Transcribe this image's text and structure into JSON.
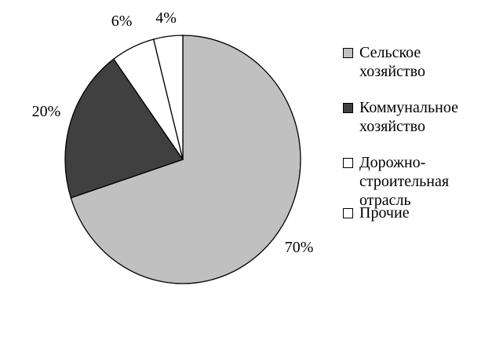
{
  "chart_data": {
    "type": "pie",
    "categories": [
      "Сельское хозяйство",
      "Коммунальное хозяйство",
      "Дорожно-строительная отрасль",
      "Прочие"
    ],
    "values": [
      70,
      20,
      6,
      4
    ],
    "value_labels": [
      "70%",
      "20%",
      "6%",
      "4%"
    ],
    "colors": [
      "#c0c0c0",
      "#404040",
      "#ffffff",
      "#ffffff"
    ],
    "legend": "right"
  }
}
